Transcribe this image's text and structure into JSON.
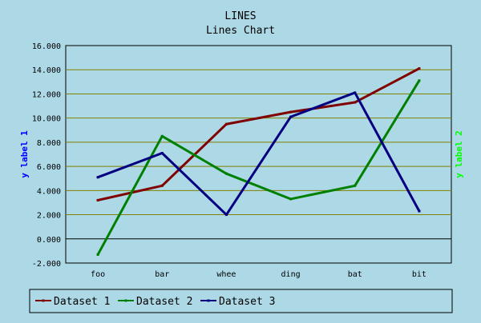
{
  "chart_data": {
    "type": "line",
    "title": "LINES",
    "subtitle": "Lines Chart",
    "xlabel": "",
    "ylabel": "y label 1",
    "ylabel2": "y label 2",
    "ylim": [
      -2000,
      16000
    ],
    "yticks": [
      -2000,
      0,
      2000,
      4000,
      6000,
      8000,
      10000,
      12000,
      14000,
      16000
    ],
    "ytick_labels": [
      "-2.000",
      "0.000",
      "2.000",
      "4.000",
      "6.000",
      "8.000",
      "10.000",
      "12.000",
      "14.000",
      "16.000"
    ],
    "categories": [
      "foo",
      "bar",
      "whee",
      "ding",
      "bat",
      "bit"
    ],
    "grid": true,
    "legend": "bottom",
    "series": [
      {
        "name": "Dataset 1",
        "color": "#800000",
        "values": [
          3200,
          4400,
          9500,
          10500,
          11300,
          14100
        ]
      },
      {
        "name": "Dataset 2",
        "color": "#008000",
        "values": [
          -1300,
          8500,
          5400,
          3300,
          4400,
          13100
        ]
      },
      {
        "name": "Dataset 3",
        "color": "#000080",
        "values": [
          5100,
          7100,
          2000,
          10100,
          12100,
          2300
        ]
      }
    ],
    "colors": {
      "background": "#add8e6",
      "plot_background": "#add8e6",
      "gridline": "#808000",
      "zero_line": "#000000",
      "axis_text": "#000000",
      "ylabel_left": "#0000ff",
      "ylabel_right": "#00ff00"
    }
  }
}
